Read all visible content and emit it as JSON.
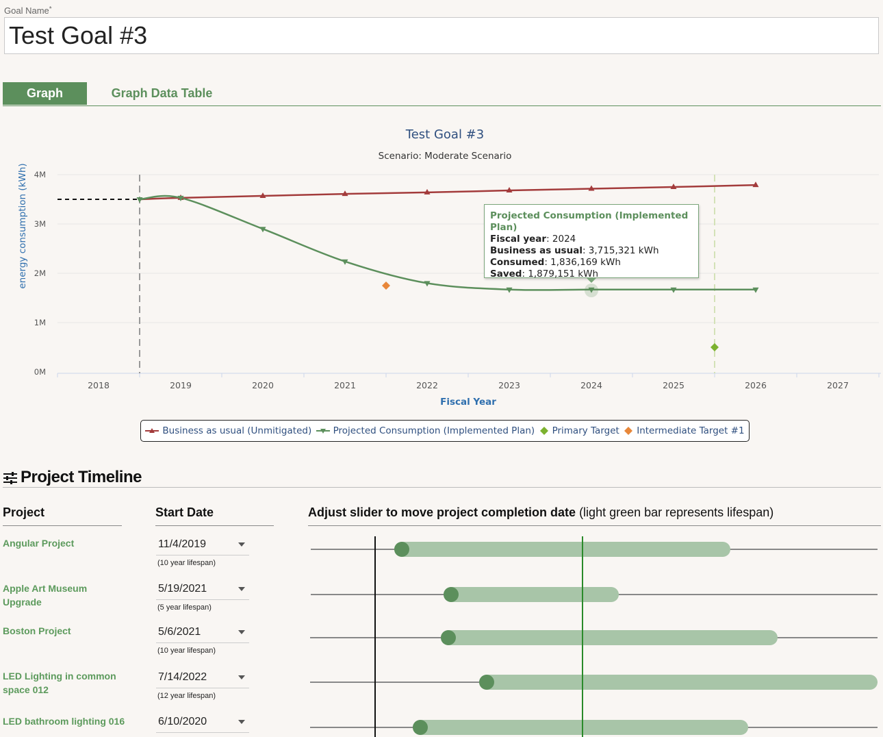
{
  "goal": {
    "label": "Goal Name",
    "required_mark": "*",
    "value": "Test Goal #3"
  },
  "tabs": {
    "graph": "Graph",
    "table": "Graph Data Table"
  },
  "chart_data": {
    "type": "line",
    "title": "Test Goal #3",
    "subtitle": "Scenario: Moderate Scenario",
    "xlabel": "Fiscal Year",
    "ylabel": "energy consumption (kWh)",
    "x_ticks": [
      "2018",
      "2019",
      "2020",
      "2021",
      "2022",
      "2023",
      "2024",
      "2025",
      "2026",
      "2027"
    ],
    "y_ticks": [
      "0M",
      "1M",
      "2M",
      "3M",
      "4M"
    ],
    "ylim": [
      0,
      4000000
    ],
    "xlim": [
      2017.5,
      2027.5
    ],
    "grid": true,
    "baseline": {
      "x": [
        2017.5,
        2018.5
      ],
      "y": 3500000,
      "style": "dashed",
      "color": "#111111"
    },
    "plot_lines": [
      {
        "x": 2018.5,
        "color": "#999999",
        "style": "dashed"
      },
      {
        "x": 2025.5,
        "color": "#d3e2b7",
        "style": "dashed"
      }
    ],
    "series": [
      {
        "name": "Business as usual (Unmitigated)",
        "color": "#a33b3b",
        "marker": "triangle",
        "x": [
          2018.5,
          2019,
          2020,
          2021,
          2022,
          2023,
          2024,
          2025,
          2026
        ],
        "y": [
          3500000,
          3530000,
          3570000,
          3610000,
          3640000,
          3680000,
          3715321,
          3750000,
          3790000
        ]
      },
      {
        "name": "Projected Consumption (Implemented Plan)",
        "color": "#5c8f5c",
        "marker": "triangle-down",
        "x": [
          2018.5,
          2019,
          2020,
          2021,
          2022,
          2023,
          2024,
          2025,
          2026
        ],
        "y": [
          3500000,
          3530000,
          2900000,
          2240000,
          1800000,
          1670000,
          1836169,
          1670000,
          1670000
        ]
      },
      {
        "name": "Primary Target",
        "color": "#7cb22f",
        "marker": "diamond",
        "x": [
          2025.5
        ],
        "y": [
          500000
        ]
      },
      {
        "name": "Intermediate Target #1",
        "color": "#e8873a",
        "marker": "diamond",
        "x": [
          2021.5
        ],
        "y": [
          1750000
        ]
      }
    ]
  },
  "tooltip": {
    "title": "Projected Consumption (Implemented Plan)",
    "rows": [
      {
        "label": "Fiscal year",
        "value": "2024"
      },
      {
        "label": "Business as usual",
        "value": "3,715,321 kWh"
      },
      {
        "label": "Consumed",
        "value": "1,836,169 kWh"
      },
      {
        "label": "Saved",
        "value": "1,879,151 kWh"
      }
    ]
  },
  "legend": [
    {
      "name": "Business as usual (Unmitigated)",
      "color": "#a33b3b",
      "icon": "triangle-up-icon"
    },
    {
      "name": "Projected Consumption (Implemented Plan)",
      "color": "#5c8f5c",
      "icon": "triangle-down-icon"
    },
    {
      "name": "Primary Target",
      "color": "#7cb22f",
      "icon": "diamond-icon"
    },
    {
      "name": "Intermediate Target #1",
      "color": "#e8873a",
      "icon": "diamond-icon"
    }
  ],
  "timeline": {
    "title": "Project Timeline",
    "icon": "sliders-icon",
    "col_project": "Project",
    "col_start": "Start Date",
    "col_slider_bold": "Adjust slider to move project completion date",
    "col_slider_light": " (light green bar represents lifespan)",
    "projects": [
      {
        "name": "Angular Project",
        "date": "11/4/2019",
        "lifespan": "(10 year lifespan)"
      },
      {
        "name": "Apple Art Museum Upgrade",
        "date": "5/19/2021",
        "lifespan": "(5 year lifespan)"
      },
      {
        "name": "Boston Project",
        "date": "5/6/2021",
        "lifespan": "(10 year lifespan)"
      },
      {
        "name": "LED Lighting in common space 012",
        "date": "7/14/2022",
        "lifespan": "(12 year lifespan)"
      },
      {
        "name": "LED bathroom lighting 016",
        "date": "6/10/2020",
        "lifespan": ""
      }
    ]
  }
}
